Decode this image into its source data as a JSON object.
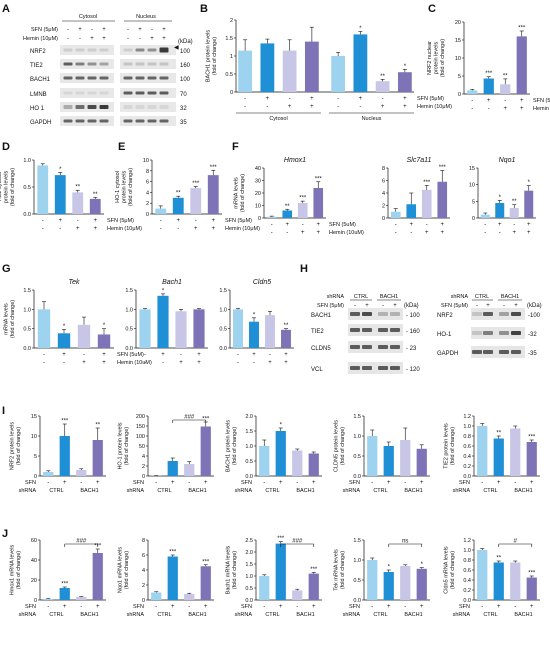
{
  "colors": {
    "light_blue": "#9ed3ef",
    "blue": "#1f8fd6",
    "lavender": "#c8c6e6",
    "purple": "#7f73b8",
    "axis": "#111111",
    "band": "#3a3a3a"
  },
  "panels": {
    "A": {
      "letter": "A"
    },
    "B": {
      "letter": "B"
    },
    "C": {
      "letter": "C"
    },
    "D": {
      "letter": "D"
    },
    "E": {
      "letter": "E"
    },
    "F": {
      "letter": "F"
    },
    "G": {
      "letter": "G"
    },
    "H": {
      "letter": "H"
    },
    "I": {
      "letter": "I"
    },
    "J": {
      "letter": "J"
    }
  },
  "blotA": {
    "groups": [
      "Cytosol",
      "Nucleus"
    ],
    "rows": [
      {
        "cond": "SFN (5μM)",
        "signs": [
          "-",
          "+",
          "-",
          "+",
          "-",
          "+",
          "-",
          "+"
        ]
      },
      {
        "cond": "Hemin (10μM)",
        "signs": [
          "-",
          "-",
          "+",
          "+",
          "-",
          "-",
          "+",
          "+"
        ]
      }
    ],
    "kda_label": "(kDa)",
    "bands": [
      {
        "name": "NRF2",
        "kda": "100"
      },
      {
        "name": "TIE2",
        "kda": "160"
      },
      {
        "name": "BACH1",
        "kda": "100"
      },
      {
        "name": "LMNB",
        "kda": "70"
      },
      {
        "name": "HO 1",
        "kda": "32"
      },
      {
        "name": "GAPDH",
        "kda": "35"
      }
    ]
  },
  "blotH": {
    "shrna_label": "shRNA",
    "shrna": [
      "CTRL",
      "BACH1"
    ],
    "sfn_label": "SFN (5μM)",
    "signs": [
      "-",
      "+",
      "-",
      "+"
    ],
    "kda_label": "(kDa)",
    "left": [
      {
        "name": "BACH1",
        "kda": "100"
      },
      {
        "name": "TIE2",
        "kda": "160"
      },
      {
        "name": "CLDN5",
        "kda": "23"
      },
      {
        "name": "VCL",
        "kda": "120"
      }
    ],
    "right": [
      {
        "name": "NRF2",
        "kda": "100"
      },
      {
        "name": "HO-1",
        "kda": "32"
      },
      {
        "name": "GAPDH",
        "kda": "35"
      }
    ]
  },
  "chart_data": [
    {
      "id": "B",
      "type": "bar",
      "ylabel": "BACH1 protein levels\n(fold of change)",
      "ylim": [
        0,
        2
      ],
      "yticks": [
        "0",
        "0.5",
        "1",
        "1.5",
        "2"
      ],
      "values": [
        1.15,
        1.35,
        1.15,
        1.4,
        1.0,
        1.6,
        0.3,
        0.55
      ],
      "errors": [
        0.3,
        0.12,
        0.3,
        0.4,
        0.1,
        0.08,
        0.05,
        0.08
      ],
      "sig": [
        "",
        "",
        "",
        "",
        "",
        "*",
        "**",
        "*"
      ],
      "groups": [
        "Cytosol",
        "Nucleus"
      ],
      "rows": [
        {
          "cond": "SFN (5μM)",
          "signs": [
            "-",
            "+",
            "-",
            "+",
            "-",
            "+",
            "-",
            "+"
          ]
        },
        {
          "cond": "Hemin (10μM)",
          "signs": [
            "-",
            "-",
            "+",
            "+",
            "-",
            "-",
            "+",
            "+"
          ]
        }
      ]
    },
    {
      "id": "C",
      "type": "bar",
      "ylabel": "NRF2 nuclear\nprotein levels\n(fold of change)",
      "ylim": [
        0,
        20
      ],
      "yticks": [
        "0",
        "5",
        "10",
        "15",
        "20"
      ],
      "values": [
        1.0,
        4.3,
        2.7,
        16.0
      ],
      "errors": [
        0.3,
        0.5,
        1.5,
        1.5
      ],
      "sig": [
        "",
        "***",
        "**",
        "***"
      ],
      "rows": [
        {
          "cond": "SFN (5μM)",
          "signs": [
            "-",
            "+",
            "-",
            "+"
          ]
        },
        {
          "cond": "Hemin (10μM)",
          "signs": [
            "-",
            "-",
            "+",
            "+"
          ]
        }
      ]
    },
    {
      "id": "D",
      "type": "bar",
      "ylabel": "TIE2 cytosol\nprotein levels\n(fold of change)",
      "ylim": [
        0,
        1
      ],
      "yticks": [
        "0.0",
        "0.5",
        "1.0"
      ],
      "values": [
        0.9,
        0.72,
        0.4,
        0.28
      ],
      "errors": [
        0.03,
        0.05,
        0.04,
        0.03
      ],
      "sig": [
        "",
        "*",
        "**",
        "**"
      ],
      "rows": [
        {
          "cond": "SFN (5μM)",
          "signs": [
            "-",
            "+",
            "-",
            "+"
          ]
        },
        {
          "cond": "Hemin (10μM)",
          "signs": [
            "-",
            "-",
            "+",
            "+"
          ]
        }
      ]
    },
    {
      "id": "E",
      "type": "bar",
      "ylabel": "HO-1 cytosol\nprotein levels\n(fold of change)",
      "ylim": [
        0,
        10
      ],
      "yticks": [
        "0",
        "2",
        "4",
        "6",
        "8",
        "10"
      ],
      "values": [
        1.0,
        3.0,
        4.8,
        7.2
      ],
      "errors": [
        0.5,
        0.3,
        0.3,
        0.9
      ],
      "sig": [
        "",
        "**",
        "***",
        "***"
      ],
      "rows": [
        {
          "cond": "SFN (5μM)",
          "signs": [
            "-",
            "+",
            "-",
            "+"
          ]
        },
        {
          "cond": "Hemin (10μM)",
          "signs": [
            "-",
            "-",
            "+",
            "+"
          ]
        }
      ]
    },
    {
      "id": "F1",
      "type": "bar",
      "title": "Hmox1",
      "ylabel": "mRNA levels\n(fold of change)",
      "ylim": [
        0,
        40
      ],
      "yticks": [
        "0",
        "10",
        "20",
        "30",
        "40"
      ],
      "values": [
        1.0,
        6.0,
        12.0,
        24.0
      ],
      "errors": [
        0.5,
        1.0,
        1.5,
        5.0
      ],
      "sig": [
        "",
        "**",
        "***",
        "***"
      ],
      "rows": [
        {
          "cond": "SFN (5uM)",
          "signs": [
            "-",
            "+",
            "-",
            "+"
          ]
        },
        {
          "cond": "Hemin (10uM)",
          "signs": [
            "-",
            "-",
            "+",
            "+"
          ]
        }
      ]
    },
    {
      "id": "F2",
      "type": "bar",
      "title": "Slc7a11",
      "ylim": [
        0,
        8
      ],
      "yticks": [
        "0",
        "2",
        "4",
        "6",
        "8"
      ],
      "values": [
        1.0,
        2.2,
        4.5,
        5.8
      ],
      "errors": [
        0.5,
        1.8,
        0.7,
        1.8
      ],
      "sig": [
        "",
        "",
        "***",
        "***"
      ],
      "rows": [
        {
          "signs": [
            "-",
            "+",
            "-",
            "+"
          ]
        },
        {
          "signs": [
            "-",
            "-",
            "+",
            "+"
          ]
        }
      ]
    },
    {
      "id": "F3",
      "type": "bar",
      "title": "Nqo1",
      "ylim": [
        0,
        15
      ],
      "yticks": [
        "0",
        "5",
        "10",
        "15"
      ],
      "values": [
        1.0,
        4.5,
        3.0,
        8.2
      ],
      "errors": [
        0.5,
        0.8,
        1.0,
        1.5
      ],
      "sig": [
        "",
        "*",
        "**",
        "*"
      ],
      "rows": [
        {
          "signs": [
            "-",
            "+",
            "-",
            "+"
          ]
        },
        {
          "signs": [
            "-",
            "-",
            "+",
            "+"
          ]
        }
      ]
    },
    {
      "id": "G1",
      "type": "bar",
      "title": "Tek",
      "ylabel": "mRNA levels\n(fold of change)",
      "ylim": [
        0,
        1.5
      ],
      "yticks": [
        "0.0",
        "0.5",
        "1.0",
        "1.5"
      ],
      "values": [
        1.0,
        0.38,
        0.6,
        0.35
      ],
      "errors": [
        0.2,
        0.1,
        0.2,
        0.15
      ],
      "sig": [
        "",
        "*",
        "",
        "*"
      ],
      "rows": [
        {
          "cond": "SFN (5uM)",
          "signs": [
            "-",
            "+",
            "-",
            "+"
          ]
        },
        {
          "cond": "Hemin (10uM)",
          "signs": [
            "-",
            "-",
            "+",
            "+"
          ]
        }
      ]
    },
    {
      "id": "G2",
      "type": "bar",
      "title": "Bach1",
      "ylim": [
        0,
        1.5
      ],
      "yticks": [
        "0.0",
        "0.5",
        "1.0",
        "1.5"
      ],
      "values": [
        1.0,
        1.35,
        0.95,
        1.0
      ],
      "errors": [
        0.02,
        0.05,
        0.05,
        0.02
      ],
      "sig": [
        "",
        "*",
        "",
        ""
      ],
      "rows": [
        {
          "signs": [
            "-",
            "+",
            "-",
            "+"
          ]
        },
        {
          "signs": [
            "-",
            "-",
            "+",
            "+"
          ]
        }
      ]
    },
    {
      "id": "G3",
      "type": "bar",
      "title": "Cldn5",
      "ylim": [
        0,
        1.5
      ],
      "yticks": [
        "0.0",
        "0.5",
        "1.0",
        "1.5"
      ],
      "values": [
        1.0,
        0.68,
        0.85,
        0.47
      ],
      "errors": [
        0.02,
        0.1,
        0.1,
        0.03
      ],
      "sig": [
        "",
        "*",
        "",
        "**"
      ],
      "rows": [
        {
          "signs": [
            "-",
            "+",
            "-",
            "+"
          ]
        },
        {
          "signs": [
            "-",
            "-",
            "+",
            "+"
          ]
        }
      ]
    },
    {
      "id": "I1",
      "type": "bar",
      "ylabel": "NRF2 protein levels\n(fold of change)",
      "ylim": [
        0,
        15
      ],
      "yticks": [
        "0",
        "5",
        "10",
        "15"
      ],
      "values": [
        1.0,
        10.0,
        1.5,
        9.0
      ],
      "errors": [
        0.3,
        3.0,
        0.3,
        3.0
      ],
      "sig": [
        "",
        "***",
        "",
        "**"
      ],
      "shrna": [
        "CTRL",
        "BACH1"
      ],
      "signs": [
        "-",
        "+",
        "-",
        "+"
      ]
    },
    {
      "id": "I2",
      "type": "bar",
      "ylabel": "HO-1 protein levels\n(fold of change)",
      "ylim": [
        0,
        200
      ],
      "yticks": [
        "0",
        "2",
        "4",
        "50",
        "100",
        "150",
        "200"
      ],
      "values": [
        1.0,
        50,
        40,
        165
      ],
      "errors": [
        0.3,
        10,
        8,
        15
      ],
      "sig": [
        "",
        "",
        "",
        "***"
      ],
      "bracket": "###",
      "shrna": [
        "CTRL",
        "BACH1"
      ],
      "signs": [
        "-",
        "+",
        "-",
        "+"
      ]
    },
    {
      "id": "I3",
      "type": "bar",
      "ylabel": "BACH1 protein levels\n(fold of change)",
      "ylim": [
        0,
        2
      ],
      "yticks": [
        "0.0",
        "0.5",
        "1.0",
        "1.5",
        "2.0"
      ],
      "values": [
        1.0,
        1.5,
        0.85,
        0.75
      ],
      "errors": [
        0.2,
        0.1,
        0.05,
        0.05
      ],
      "sig": [
        "",
        "*",
        "",
        ""
      ],
      "shrna": [
        "CTRL",
        "BACH1"
      ],
      "signs": [
        "-",
        "+",
        "-",
        "+"
      ]
    },
    {
      "id": "I4",
      "type": "bar",
      "ylabel": "CLDN5 protein levels\n(fold of change)",
      "ylim": [
        0,
        1.5
      ],
      "yticks": [
        "0.0",
        "0.5",
        "1.0",
        "1.5"
      ],
      "values": [
        1.0,
        0.75,
        0.9,
        0.68
      ],
      "errors": [
        0.15,
        0.1,
        0.3,
        0.1
      ],
      "sig": [
        "",
        "",
        "",
        ""
      ],
      "shrna": [
        "CTRL",
        "BACH1"
      ],
      "signs": [
        "-",
        "+",
        "-",
        "+"
      ]
    },
    {
      "id": "I5",
      "type": "bar",
      "ylabel": "TIE2 protein levels\n(fold of change)",
      "ylim": [
        0,
        1.2
      ],
      "yticks": [
        "0.0",
        "0.2",
        "0.4",
        "0.6",
        "0.8",
        "1.0",
        "1.2"
      ],
      "values": [
        1.0,
        0.75,
        0.95,
        0.68
      ],
      "errors": [
        0.05,
        0.05,
        0.05,
        0.04
      ],
      "sig": [
        "",
        "**",
        "",
        "***"
      ],
      "shrna": [
        "CTRL",
        "BACH1"
      ],
      "signs": [
        "-",
        "+",
        "-",
        "+"
      ]
    },
    {
      "id": "J1",
      "type": "bar",
      "ylabel": "Hmox1 mRNA levels\n(fold of change)",
      "ylim": [
        0,
        60
      ],
      "yticks": [
        "0",
        "20",
        "40",
        "60"
      ],
      "values": [
        1.0,
        12.0,
        3.0,
        47.0
      ],
      "errors": [
        0.3,
        1.0,
        0.5,
        4.0
      ],
      "sig": [
        "",
        "***",
        "",
        "***"
      ],
      "bracket": "###",
      "shrna": [
        "CTRL",
        "BACH1"
      ],
      "signs": [
        "-",
        "+",
        "-",
        "+"
      ]
    },
    {
      "id": "J2",
      "type": "bar",
      "ylabel": "Nqo1 mRNA levels\n(fold of change)",
      "ylim": [
        0,
        8
      ],
      "yticks": [
        "0",
        "2",
        "4",
        "6",
        "8"
      ],
      "values": [
        1.0,
        5.8,
        0.8,
        4.5
      ],
      "errors": [
        0.1,
        0.2,
        0.1,
        0.2
      ],
      "sig": [
        "",
        "***",
        "",
        "***"
      ],
      "shrna": [
        "CTRL",
        "BACH1"
      ],
      "signs": [
        "-",
        "+",
        "-",
        "+"
      ]
    },
    {
      "id": "J3",
      "type": "bar",
      "ylabel": "Bach1 mRNA levels\n(fold of change)",
      "ylim": [
        0,
        2.5
      ],
      "yticks": [
        "0.0",
        "0.5",
        "1.0",
        "1.5",
        "2.0",
        "2.5"
      ],
      "values": [
        1.0,
        2.35,
        0.4,
        1.1
      ],
      "errors": [
        0.05,
        0.08,
        0.05,
        0.05
      ],
      "sig": [
        "",
        "***",
        "",
        "***"
      ],
      "bracket": "###",
      "shrna": [
        "CTRL",
        "BACH1"
      ],
      "signs": [
        "-",
        "+",
        "-",
        "+"
      ]
    },
    {
      "id": "J4",
      "type": "bar",
      "ylabel": "Tek mRNA levels\n(fold of change)",
      "ylim": [
        0,
        1.5
      ],
      "yticks": [
        "0.0",
        "0.5",
        "1.0",
        "1.5"
      ],
      "values": [
        1.0,
        0.7,
        0.85,
        0.78
      ],
      "errors": [
        0.05,
        0.05,
        0.03,
        0.03
      ],
      "sig": [
        "",
        "*",
        "",
        "*"
      ],
      "bracket": "ns",
      "shrna": [
        "CTRL",
        "BACH1"
      ],
      "signs": [
        "-",
        "+",
        "-",
        "+"
      ]
    },
    {
      "id": "J5",
      "type": "bar",
      "ylabel": "Cldn5 mRNA levels\n(fold of change)",
      "ylim": [
        0,
        1.2
      ],
      "yticks": [
        "0.0",
        "0.2",
        "0.4",
        "0.6",
        "0.8",
        "1.0",
        "1.2"
      ],
      "values": [
        1.0,
        0.75,
        0.75,
        0.45
      ],
      "errors": [
        0.03,
        0.03,
        0.03,
        0.03
      ],
      "sig": [
        "",
        "**",
        "",
        "***"
      ],
      "bracket": "#",
      "shrna": [
        "CTRL",
        "BACH1"
      ],
      "signs": [
        "-",
        "+",
        "-",
        "+"
      ]
    }
  ],
  "labels_IJ": {
    "sfn": "SFN",
    "shrna": "shRNA"
  }
}
